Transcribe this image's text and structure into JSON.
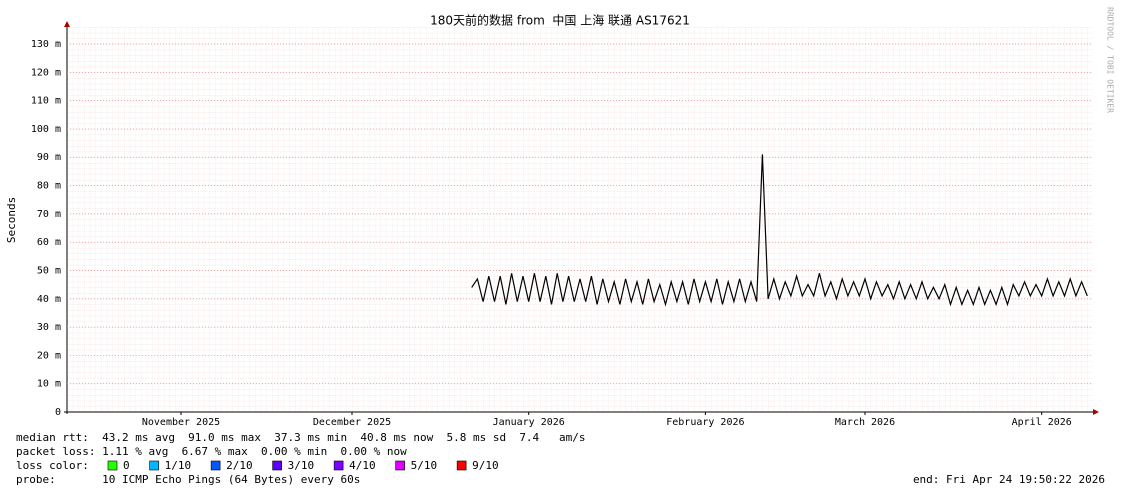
{
  "chart_data": {
    "type": "line",
    "title": "180天前的数据 from  中国 上海 联通 AS17621",
    "y_label": "Seconds",
    "watermark": "RRDTOOL / TOBI OETIKER",
    "ylim": [
      0,
      136
    ],
    "yticks": [
      0,
      {
        "value": 10,
        "label": "10 m"
      },
      {
        "value": 20,
        "label": "20 m"
      },
      {
        "value": 30,
        "label": "30 m"
      },
      {
        "value": 40,
        "label": "40 m"
      },
      {
        "value": 50,
        "label": "50 m"
      },
      {
        "value": 60,
        "label": "60 m"
      },
      {
        "value": 70,
        "label": "70 m"
      },
      {
        "value": 80,
        "label": "80 m"
      },
      {
        "value": 90,
        "label": "90 m"
      },
      {
        "value": 100,
        "label": "100 m"
      },
      {
        "value": 110,
        "label": "110 m"
      },
      {
        "value": 120,
        "label": "120 m"
      },
      {
        "value": 130,
        "label": "130 m"
      }
    ],
    "xlim": [
      0,
      180
    ],
    "xticks": [
      {
        "value": 20,
        "label": "November 2025"
      },
      {
        "value": 50,
        "label": "December 2025"
      },
      {
        "value": 81,
        "label": "January 2026"
      },
      {
        "value": 112,
        "label": "February 2026"
      },
      {
        "value": 140,
        "label": "March 2026"
      },
      {
        "value": 171,
        "label": "April 2026"
      }
    ],
    "grid": true,
    "series": [
      {
        "name": "median rtt",
        "color": "#000000",
        "x": [
          71,
          72,
          73,
          74,
          75,
          76,
          77,
          78,
          79,
          80,
          81,
          82,
          83,
          84,
          85,
          86,
          87,
          88,
          89,
          90,
          91,
          92,
          93,
          94,
          95,
          96,
          97,
          98,
          99,
          100,
          101,
          102,
          103,
          104,
          105,
          106,
          107,
          108,
          109,
          110,
          111,
          112,
          113,
          114,
          115,
          116,
          117,
          118,
          119,
          120,
          121,
          122,
          123,
          124,
          125,
          126,
          127,
          128,
          129,
          130,
          131,
          132,
          133,
          134,
          135,
          136,
          137,
          138,
          139,
          140,
          141,
          142,
          143,
          144,
          145,
          146,
          147,
          148,
          149,
          150,
          151,
          152,
          153,
          154,
          155,
          156,
          157,
          158,
          159,
          160,
          161,
          162,
          163,
          164,
          165,
          166,
          167,
          168,
          169,
          170,
          171,
          172,
          173,
          174,
          175,
          176,
          177,
          178,
          179
        ],
        "values": [
          44,
          47,
          39,
          48,
          39,
          48,
          38,
          49,
          39,
          48,
          39,
          49,
          39,
          48,
          38,
          49,
          39,
          48,
          39,
          47,
          39,
          48,
          38,
          47,
          39,
          46,
          38,
          47,
          39,
          46,
          38,
          47,
          39,
          45,
          38,
          46,
          39,
          46,
          38,
          47,
          39,
          46,
          39,
          47,
          38,
          46,
          39,
          47,
          39,
          46,
          39,
          91,
          40,
          47,
          40,
          46,
          41,
          48,
          41,
          45,
          41,
          49,
          41,
          46,
          40,
          47,
          41,
          46,
          41,
          47,
          40,
          46,
          41,
          45,
          40,
          46,
          40,
          45,
          40,
          46,
          40,
          44,
          40,
          45,
          38,
          44,
          38,
          43,
          38,
          44,
          38,
          43,
          38,
          44,
          38,
          45,
          41,
          46,
          41,
          45,
          41,
          47,
          41,
          46,
          41,
          47,
          41,
          46,
          41
        ]
      }
    ],
    "stats": [
      "median rtt:  43.2 ms avg  91.0 ms max  37.3 ms min  40.8 ms now  5.8 ms sd  7.4   am/s",
      "packet loss: 1.11 % avg  6.67 % max  0.00 % min  0.00 % now"
    ],
    "loss_title": "loss color:",
    "loss_colors": [
      {
        "label": "0",
        "color": "#26ff00"
      },
      {
        "label": "1/10",
        "color": "#00b8ff"
      },
      {
        "label": "2/10",
        "color": "#0059ff"
      },
      {
        "label": "3/10",
        "color": "#5e00ff"
      },
      {
        "label": "4/10",
        "color": "#7e00ff"
      },
      {
        "label": "5/10",
        "color": "#dd00ff"
      },
      {
        "label": "9/10",
        "color": "#ff0000"
      }
    ],
    "probe": "probe:       10 ICMP Echo Pings (64 Bytes) every 60s",
    "end": "end: Fri Apr 24 19:50:22 2026"
  }
}
